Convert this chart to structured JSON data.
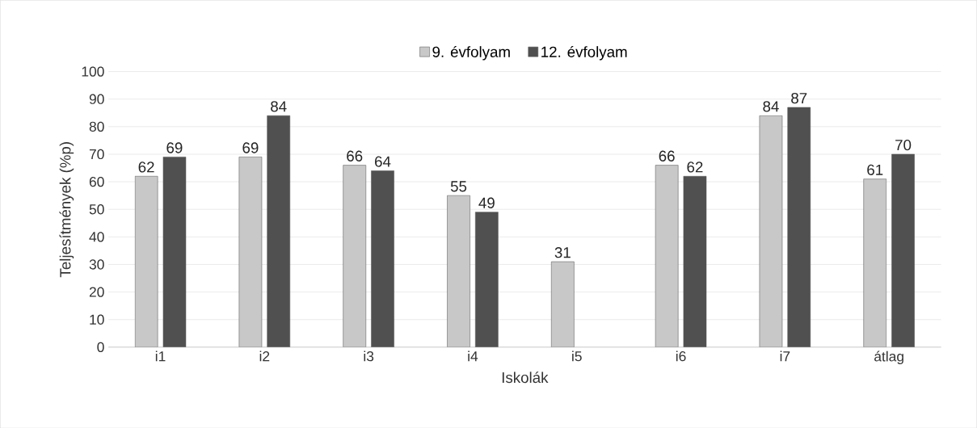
{
  "chart_data": {
    "type": "bar",
    "xlabel": "Iskolák",
    "ylabel": "Teljesítmények (%p)",
    "categories": [
      "i1",
      "i2",
      "i3",
      "i4",
      "i5",
      "i6",
      "i7",
      "átlag"
    ],
    "series": [
      {
        "name": "9. évfolyam",
        "color": "#c8c8c8",
        "values": [
          62,
          69,
          66,
          55,
          31,
          66,
          84,
          61
        ]
      },
      {
        "name": "12. évfolyam",
        "color": "#505050",
        "values": [
          69,
          84,
          64,
          49,
          null,
          62,
          87,
          70
        ]
      }
    ],
    "ylim": [
      0,
      100
    ],
    "yticks": [
      0,
      10,
      20,
      30,
      40,
      50,
      60,
      70,
      80,
      90,
      100
    ],
    "grid": "y",
    "legend": "top",
    "data_labels": true
  }
}
